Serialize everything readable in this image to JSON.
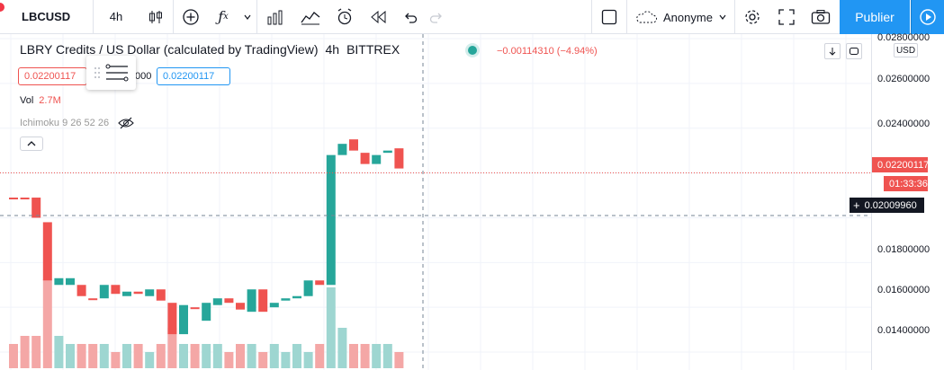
{
  "toolbar": {
    "symbol": "LBCUSD",
    "interval": "4h",
    "user": "Anonyme",
    "publish": "Publier",
    "icons": [
      "candles-icon",
      "add-indicator-icon",
      "fx-icon",
      "chevron-down-icon",
      "bar-chart-icon",
      "line-chart-icon",
      "alarm-icon",
      "replay-icon",
      "undo-icon",
      "redo-icon",
      "square-icon",
      "cloud-icon",
      "gear-icon",
      "fullscreen-icon",
      "camera-icon",
      "play-icon"
    ]
  },
  "legend": {
    "title": "LBRY Credits / US Dollar (calculated by TradingView)",
    "interval": "4h",
    "exchange": "BITTREX",
    "change": "−0.00114310 (−4.94%)",
    "bid": "0.02200117",
    "mid_fragment": "000",
    "ask": "0.02200117"
  },
  "volume": {
    "label": "Vol",
    "value": "2.7M"
  },
  "indicator": {
    "label": "Ichimoku 9 26 52 26"
  },
  "price_axis": {
    "currency": "USD",
    "ticks": [
      "0.02800000",
      "0.02600000",
      "0.02400000",
      "0.02200117",
      "01:33:36",
      "0.02009960",
      "0.01800000",
      "0.01600000",
      "0.01400000"
    ],
    "last_price": "0.02200117",
    "timer": "01:33:36",
    "crosshair_price": "0.02009960"
  },
  "colors": {
    "up": "#26a69a",
    "down": "#ef5350",
    "up_vol": "#9ed6d1",
    "down_vol": "#f4a7a6",
    "accent": "#2196f3"
  },
  "chart_data": {
    "type": "candlestick",
    "ylim": [
      0.0132,
      0.0282
    ],
    "candles": [
      {
        "o": 0.0209,
        "c": 0.0209,
        "dir": "down"
      },
      {
        "o": 0.0209,
        "c": 0.0209,
        "dir": "down"
      },
      {
        "o": 0.0209,
        "c": 0.02,
        "dir": "down"
      },
      {
        "o": 0.0198,
        "c": 0.0172,
        "dir": "down"
      },
      {
        "o": 0.017,
        "c": 0.0173,
        "dir": "up"
      },
      {
        "o": 0.017,
        "c": 0.0173,
        "dir": "up"
      },
      {
        "o": 0.017,
        "c": 0.0165,
        "dir": "down"
      },
      {
        "o": 0.0164,
        "c": 0.0164,
        "dir": "down"
      },
      {
        "o": 0.0164,
        "c": 0.017,
        "dir": "up"
      },
      {
        "o": 0.017,
        "c": 0.0166,
        "dir": "down"
      },
      {
        "o": 0.0165,
        "c": 0.0167,
        "dir": "up"
      },
      {
        "o": 0.0167,
        "c": 0.0166,
        "dir": "down"
      },
      {
        "o": 0.0165,
        "c": 0.0168,
        "dir": "up"
      },
      {
        "o": 0.0168,
        "c": 0.0163,
        "dir": "down"
      },
      {
        "o": 0.0162,
        "c": 0.0148,
        "dir": "down"
      },
      {
        "o": 0.0148,
        "c": 0.0161,
        "dir": "up"
      },
      {
        "o": 0.016,
        "c": 0.016,
        "dir": "down"
      },
      {
        "o": 0.0154,
        "c": 0.0162,
        "dir": "up"
      },
      {
        "o": 0.0161,
        "c": 0.0164,
        "dir": "up"
      },
      {
        "o": 0.0164,
        "c": 0.0162,
        "dir": "down"
      },
      {
        "o": 0.0162,
        "c": 0.0159,
        "dir": "down"
      },
      {
        "o": 0.0158,
        "c": 0.0168,
        "dir": "up"
      },
      {
        "o": 0.0168,
        "c": 0.0158,
        "dir": "down"
      },
      {
        "o": 0.016,
        "c": 0.0162,
        "dir": "up"
      },
      {
        "o": 0.0163,
        "c": 0.0164,
        "dir": "up"
      },
      {
        "o": 0.0164,
        "c": 0.0165,
        "dir": "up"
      },
      {
        "o": 0.0165,
        "c": 0.0172,
        "dir": "up"
      },
      {
        "o": 0.0172,
        "c": 0.017,
        "dir": "down"
      },
      {
        "o": 0.017,
        "c": 0.0228,
        "dir": "up"
      },
      {
        "o": 0.0228,
        "c": 0.0233,
        "dir": "up"
      },
      {
        "o": 0.0235,
        "c": 0.023,
        "dir": "down"
      },
      {
        "o": 0.0229,
        "c": 0.0224,
        "dir": "down"
      },
      {
        "o": 0.0224,
        "c": 0.0228,
        "dir": "up"
      },
      {
        "o": 0.0229,
        "c": 0.023,
        "dir": "up"
      },
      {
        "o": 0.0231,
        "c": 0.0222,
        "dir": "down"
      }
    ],
    "volume": [
      0.3,
      0.4,
      0.4,
      1.1,
      0.4,
      0.3,
      0.3,
      0.3,
      0.3,
      0.2,
      0.3,
      0.3,
      0.2,
      0.3,
      0.5,
      0.3,
      0.3,
      0.3,
      0.3,
      0.2,
      0.3,
      0.3,
      0.2,
      0.3,
      0.2,
      0.3,
      0.2,
      0.3,
      1.0,
      0.5,
      0.3,
      0.3,
      0.3,
      0.3,
      0.2
    ]
  }
}
